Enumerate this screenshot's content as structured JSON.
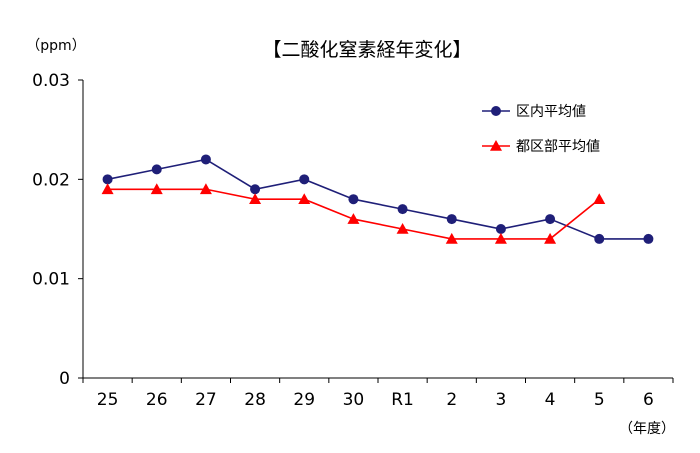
{
  "chart_data": {
    "type": "line",
    "title": "【二酸化窒素経年変化】",
    "ylabel": "（ppm）",
    "xlabel": "（年度）",
    "categories": [
      "25",
      "26",
      "27",
      "28",
      "29",
      "30",
      "R1",
      "2",
      "3",
      "4",
      "5",
      "6"
    ],
    "ylim": [
      0,
      0.03
    ],
    "yticks": [
      "0",
      "0.01",
      "0.02",
      "0.03"
    ],
    "grid": false,
    "legend_position": "top-right",
    "series": [
      {
        "name": "区内平均値",
        "marker": "circle",
        "color": "#1f1f78",
        "values": [
          0.02,
          0.021,
          0.022,
          0.019,
          0.02,
          0.018,
          0.017,
          0.016,
          0.015,
          0.016,
          0.014,
          0.014
        ]
      },
      {
        "name": "都区部平均値",
        "marker": "triangle",
        "color": "#ff0000",
        "values": [
          0.019,
          0.019,
          0.019,
          0.018,
          0.018,
          0.016,
          0.015,
          0.014,
          0.014,
          0.014,
          0.018,
          null
        ]
      }
    ]
  }
}
